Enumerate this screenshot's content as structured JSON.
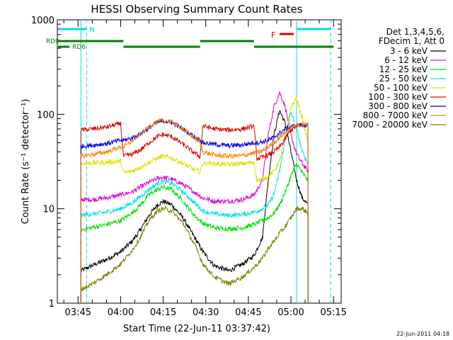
{
  "chart_data": {
    "type": "line",
    "title": "HESSI Observing Summary Count Rates",
    "xlabel": "Start Time (22-Jun-11 03:37:42)",
    "ylabel": "Count Rate (s⁻¹ detector⁻¹)",
    "yscale": "log",
    "ylim": [
      1,
      1000
    ],
    "xlim": [
      "03:37:42",
      "05:17:42"
    ],
    "x_tick_labels": [
      "03:45",
      "04:00",
      "04:15",
      "04:30",
      "04:45",
      "05:00",
      "05:15"
    ],
    "y_tick_labels": [
      "1",
      "10",
      "100",
      "1000"
    ],
    "legend_position": "right",
    "legend_header": [
      "Det 1,3,4,5,6,",
      "FDecim 1, Att 0"
    ],
    "timestamp": "22-Jun-2011 04:18",
    "flag_labels": {
      "night": "N",
      "flare": "F",
      "rd0": "RD0",
      "rd6": "RD6"
    },
    "series": [
      {
        "name": "3 - 6 keV",
        "color": "#000000",
        "values": [
          [
            "03:46",
            2.2
          ],
          [
            "03:50",
            2.5
          ],
          [
            "03:55",
            2.9
          ],
          [
            "04:00",
            3.5
          ],
          [
            "04:04",
            4.5
          ],
          [
            "04:07",
            6
          ],
          [
            "04:10",
            8.5
          ],
          [
            "04:13",
            11
          ],
          [
            "04:15",
            12
          ],
          [
            "04:18",
            11
          ],
          [
            "04:22",
            8
          ],
          [
            "04:26",
            5
          ],
          [
            "04:29",
            3.5
          ],
          [
            "04:33",
            2.5
          ],
          [
            "04:38",
            2.2
          ],
          [
            "04:43",
            2.6
          ],
          [
            "04:47",
            3.2
          ],
          [
            "04:50",
            5
          ],
          [
            "04:52",
            20
          ],
          [
            "04:54",
            60
          ],
          [
            "04:56",
            110
          ],
          [
            "04:58",
            80
          ],
          [
            "05:00",
            40
          ],
          [
            "05:02",
            20
          ],
          [
            "05:04",
            13
          ],
          [
            "05:06",
            11
          ]
        ]
      },
      {
        "name": "6 - 12 keV",
        "color": "#e000e0",
        "values": [
          [
            "03:46",
            12.5
          ],
          [
            "03:50",
            12.5
          ],
          [
            "03:55",
            13
          ],
          [
            "04:00",
            14
          ],
          [
            "04:04",
            15
          ],
          [
            "04:07",
            17
          ],
          [
            "04:10",
            19
          ],
          [
            "04:13",
            21
          ],
          [
            "04:15",
            21.5
          ],
          [
            "04:18",
            20.5
          ],
          [
            "04:22",
            18
          ],
          [
            "04:26",
            15
          ],
          [
            "04:29",
            13
          ],
          [
            "04:33",
            12
          ],
          [
            "04:38",
            12
          ],
          [
            "04:43",
            12.5
          ],
          [
            "04:47",
            14
          ],
          [
            "04:50",
            20
          ],
          [
            "04:52",
            60
          ],
          [
            "04:54",
            120
          ],
          [
            "04:56",
            170
          ],
          [
            "04:58",
            120
          ],
          [
            "05:00",
            60
          ],
          [
            "05:02",
            38
          ],
          [
            "05:04",
            30
          ],
          [
            "05:06",
            25
          ]
        ]
      },
      {
        "name": "12 - 25 keV",
        "color": "#00e000",
        "values": [
          [
            "03:46",
            6
          ],
          [
            "03:50",
            6.3
          ],
          [
            "03:55",
            6.8
          ],
          [
            "04:00",
            7.5
          ],
          [
            "04:04",
            9
          ],
          [
            "04:07",
            11
          ],
          [
            "04:10",
            14
          ],
          [
            "04:13",
            16
          ],
          [
            "04:15",
            17
          ],
          [
            "04:18",
            16
          ],
          [
            "04:22",
            12
          ],
          [
            "04:26",
            8.5
          ],
          [
            "04:29",
            7
          ],
          [
            "04:33",
            6.3
          ],
          [
            "04:38",
            6.1
          ],
          [
            "04:43",
            6.3
          ],
          [
            "04:47",
            6.8
          ],
          [
            "04:50",
            7.5
          ],
          [
            "04:52",
            8
          ],
          [
            "04:54",
            9
          ],
          [
            "04:56",
            11
          ],
          [
            "04:58",
            15
          ],
          [
            "05:00",
            22
          ],
          [
            "05:02",
            30
          ],
          [
            "05:04",
            24
          ],
          [
            "05:06",
            20
          ]
        ]
      },
      {
        "name": "25 - 50 keV",
        "color": "#00e0e0",
        "values": [
          [
            "03:46",
            8.5
          ],
          [
            "03:50",
            8.8
          ],
          [
            "03:55",
            9.2
          ],
          [
            "04:00",
            10
          ],
          [
            "04:04",
            11.5
          ],
          [
            "04:07",
            13.5
          ],
          [
            "04:10",
            16
          ],
          [
            "04:13",
            18.5
          ],
          [
            "04:15",
            19.5
          ],
          [
            "04:18",
            18.5
          ],
          [
            "04:22",
            15
          ],
          [
            "04:26",
            11.5
          ],
          [
            "04:29",
            9.5
          ],
          [
            "04:33",
            8.8
          ],
          [
            "04:38",
            8.5
          ],
          [
            "04:43",
            8.7
          ],
          [
            "04:47",
            9.2
          ],
          [
            "04:50",
            10
          ],
          [
            "04:52",
            11
          ],
          [
            "04:54",
            14
          ],
          [
            "04:56",
            25
          ],
          [
            "04:58",
            55
          ],
          [
            "05:00",
            105
          ],
          [
            "05:02",
            70
          ],
          [
            "05:04",
            40
          ],
          [
            "05:06",
            30
          ]
        ]
      },
      {
        "name": "50 - 100 keV",
        "color": "#e0e000",
        "values": [
          [
            "03:46",
            30
          ],
          [
            "03:50",
            30.5
          ],
          [
            "03:55",
            31
          ],
          [
            "04:00",
            32
          ],
          [
            "04:01",
            24
          ],
          [
            "04:04",
            25
          ],
          [
            "04:07",
            27.5
          ],
          [
            "04:10",
            31
          ],
          [
            "04:13",
            34.5
          ],
          [
            "04:15",
            36
          ],
          [
            "04:18",
            34.5
          ],
          [
            "04:22",
            30
          ],
          [
            "04:26",
            26
          ],
          [
            "04:28",
            24.5
          ],
          [
            "04:29",
            30.5
          ],
          [
            "04:33",
            30
          ],
          [
            "04:38",
            29.5
          ],
          [
            "04:43",
            30
          ],
          [
            "04:47",
            31
          ],
          [
            "04:48",
            20
          ],
          [
            "04:50",
            20.5
          ],
          [
            "04:52",
            22
          ],
          [
            "04:54",
            25
          ],
          [
            "04:56",
            32
          ],
          [
            "04:58",
            60
          ],
          [
            "05:00",
            120
          ],
          [
            "05:02",
            150
          ],
          [
            "05:04",
            90
          ],
          [
            "05:06",
            50
          ]
        ]
      },
      {
        "name": "100 - 300 keV",
        "color": "#e00000",
        "values": [
          [
            "03:46",
            68
          ],
          [
            "03:50",
            70
          ],
          [
            "03:55",
            73
          ],
          [
            "04:00",
            80
          ],
          [
            "04:01",
            36
          ],
          [
            "04:04",
            37.5
          ],
          [
            "04:07",
            42
          ],
          [
            "04:10",
            50
          ],
          [
            "04:13",
            58
          ],
          [
            "04:15",
            61
          ],
          [
            "04:18",
            58
          ],
          [
            "04:22",
            48
          ],
          [
            "04:26",
            39
          ],
          [
            "04:28",
            35.5
          ],
          [
            "04:29",
            75
          ],
          [
            "04:33",
            70
          ],
          [
            "04:38",
            68
          ],
          [
            "04:43",
            70
          ],
          [
            "04:47",
            75
          ],
          [
            "04:48",
            34
          ],
          [
            "04:50",
            35
          ],
          [
            "04:52",
            37
          ],
          [
            "04:54",
            40
          ],
          [
            "04:56",
            45
          ],
          [
            "04:58",
            55
          ],
          [
            "05:00",
            68
          ],
          [
            "05:02",
            75
          ],
          [
            "05:04",
            78
          ],
          [
            "05:06",
            77
          ]
        ]
      },
      {
        "name": "300 - 800 keV",
        "color": "#0000e0",
        "values": [
          [
            "03:46",
            46
          ],
          [
            "03:50",
            47
          ],
          [
            "03:55",
            49
          ],
          [
            "04:00",
            53
          ],
          [
            "04:01",
            53
          ],
          [
            "04:04",
            56
          ],
          [
            "04:07",
            62
          ],
          [
            "04:10",
            72
          ],
          [
            "04:13",
            82
          ],
          [
            "04:15",
            85
          ],
          [
            "04:18",
            82
          ],
          [
            "04:22",
            70
          ],
          [
            "04:26",
            58
          ],
          [
            "04:28",
            53
          ],
          [
            "04:29",
            50
          ],
          [
            "04:33",
            48
          ],
          [
            "04:38",
            46.5
          ],
          [
            "04:43",
            47.5
          ],
          [
            "04:47",
            50
          ],
          [
            "04:48",
            50
          ],
          [
            "04:50",
            51
          ],
          [
            "04:52",
            53
          ],
          [
            "04:54",
            57
          ],
          [
            "04:56",
            63
          ],
          [
            "04:58",
            70
          ],
          [
            "05:00",
            74
          ],
          [
            "05:02",
            76
          ],
          [
            "05:04",
            77
          ],
          [
            "05:06",
            76
          ]
        ]
      },
      {
        "name": "800 - 7000 keV",
        "color": "#ff8000",
        "values": [
          [
            "03:46",
            36
          ],
          [
            "03:50",
            37.5
          ],
          [
            "03:55",
            40
          ],
          [
            "04:00",
            45
          ],
          [
            "04:01",
            45
          ],
          [
            "04:04",
            52
          ],
          [
            "04:07",
            62
          ],
          [
            "04:10",
            73
          ],
          [
            "04:13",
            83
          ],
          [
            "04:15",
            86
          ],
          [
            "04:18",
            83
          ],
          [
            "04:22",
            70
          ],
          [
            "04:26",
            56
          ],
          [
            "04:28",
            50
          ],
          [
            "04:29",
            40
          ],
          [
            "04:33",
            37
          ],
          [
            "04:38",
            36
          ],
          [
            "04:43",
            36.5
          ],
          [
            "04:47",
            39
          ],
          [
            "04:48",
            39
          ],
          [
            "04:50",
            41
          ],
          [
            "04:52",
            45
          ],
          [
            "04:54",
            50
          ],
          [
            "04:56",
            57
          ],
          [
            "04:58",
            65
          ],
          [
            "05:00",
            72
          ],
          [
            "05:02",
            76
          ],
          [
            "05:04",
            78
          ],
          [
            "05:06",
            78
          ]
        ]
      },
      {
        "name": "7000 - 20000 keV",
        "color": "#808000",
        "values": [
          [
            "03:46",
            1.4
          ],
          [
            "03:50",
            1.6
          ],
          [
            "03:55",
            2.0
          ],
          [
            "04:00",
            2.6
          ],
          [
            "04:04",
            3.6
          ],
          [
            "04:07",
            5
          ],
          [
            "04:10",
            7.5
          ],
          [
            "04:13",
            9.5
          ],
          [
            "04:15",
            10
          ],
          [
            "04:18",
            9.5
          ],
          [
            "04:22",
            7
          ],
          [
            "04:26",
            4.2
          ],
          [
            "04:29",
            2.6
          ],
          [
            "04:33",
            1.9
          ],
          [
            "04:38",
            1.6
          ],
          [
            "04:43",
            1.9
          ],
          [
            "04:47",
            2.4
          ],
          [
            "04:50",
            3
          ],
          [
            "04:52",
            3.8
          ],
          [
            "04:54",
            4.5
          ],
          [
            "04:56",
            5.5
          ],
          [
            "04:58",
            6.5
          ],
          [
            "05:00",
            8
          ],
          [
            "05:02",
            10
          ],
          [
            "05:04",
            10
          ],
          [
            "05:06",
            9
          ]
        ]
      }
    ],
    "attenuator_bars": {
      "RD0": [
        [
          "03:38",
          "04:01"
        ],
        [
          "04:28",
          "04:47"
        ]
      ],
      "RD6": [
        [
          "03:38",
          "03:42"
        ],
        [
          "04:01",
          "04:28"
        ],
        [
          "04:47",
          "05:15"
        ]
      ],
      "N": [
        [
          "03:38",
          "03:48"
        ],
        [
          "05:02",
          "05:14"
        ]
      ],
      "F": [
        [
          "04:56",
          "05:01"
        ]
      ]
    },
    "vertical_markers": {
      "solid": [
        "03:46",
        "05:02"
      ],
      "dashed": [
        "03:48",
        "05:14"
      ]
    }
  }
}
